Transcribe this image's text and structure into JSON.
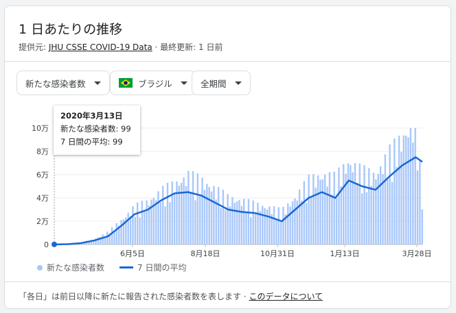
{
  "card": {
    "title": "1 日あたりの推移",
    "source_prefix": "提供元: ",
    "source_link": "JHU CSSE COVID-19 Data",
    "source_suffix": " · 最終更新: 1 日前"
  },
  "filters": {
    "metric": "新たな感染者数",
    "country": "ブラジル",
    "period": "全期間"
  },
  "tooltip": {
    "date": "2020年3月13日",
    "cases": "新たな感染者数: 99",
    "avg": "7 日間の平均: 99"
  },
  "legend": {
    "bars": "新たな感染者数",
    "line": "7 日間の平均"
  },
  "footer": {
    "text": "「各日」は前日以降に新たに報告された感染者数を表します  ·  ",
    "link": "このデータについて"
  },
  "colors": {
    "bar": "#a8c7fa",
    "line": "#1967d2"
  },
  "chart_data": {
    "type": "bar",
    "y_ticks": [
      "0",
      "2万",
      "4万",
      "6万",
      "8万",
      "10万"
    ],
    "x_ticks": [
      "6月5日",
      "8月18日",
      "10月31日",
      "1月13日",
      "3月28日"
    ],
    "ylim": [
      0,
      100000
    ],
    "series": [
      {
        "name": "新たな感染者数",
        "x": [
          "2020-03-13",
          "2020-03-27",
          "2020-04-10",
          "2020-04-24",
          "2020-05-08",
          "2020-05-22",
          "2020-06-05",
          "2020-06-19",
          "2020-07-03",
          "2020-07-17",
          "2020-07-31",
          "2020-08-14",
          "2020-08-28",
          "2020-09-11",
          "2020-09-25",
          "2020-10-09",
          "2020-10-23",
          "2020-11-06",
          "2020-11-20",
          "2020-12-04",
          "2020-12-18",
          "2021-01-01",
          "2021-01-15",
          "2021-01-29",
          "2021-02-12",
          "2021-02-26",
          "2021-03-12",
          "2021-03-26",
          "2021-04-02"
        ],
        "values": [
          99,
          500,
          1500,
          4000,
          9000,
          18000,
          28000,
          32000,
          40000,
          45000,
          52000,
          48000,
          42000,
          35000,
          33000,
          30000,
          28000,
          25000,
          35000,
          48000,
          52000,
          50000,
          62000,
          55000,
          52000,
          68000,
          80000,
          96000,
          37000
        ]
      },
      {
        "name": "7 日間の平均",
        "x": [
          "2020-03-13",
          "2020-03-27",
          "2020-04-10",
          "2020-04-24",
          "2020-05-08",
          "2020-05-22",
          "2020-06-05",
          "2020-06-19",
          "2020-07-03",
          "2020-07-17",
          "2020-07-31",
          "2020-08-14",
          "2020-08-28",
          "2020-09-11",
          "2020-09-25",
          "2020-10-09",
          "2020-10-23",
          "2020-11-06",
          "2020-11-20",
          "2020-12-04",
          "2020-12-18",
          "2021-01-01",
          "2021-01-15",
          "2021-01-29",
          "2021-02-12",
          "2021-02-26",
          "2021-03-12",
          "2021-03-26",
          "2021-04-02"
        ],
        "values": [
          99,
          300,
          1200,
          3500,
          7000,
          16000,
          26000,
          30000,
          38000,
          44000,
          45000,
          42000,
          36000,
          30000,
          28000,
          27000,
          24000,
          20000,
          30000,
          40000,
          45000,
          40000,
          55000,
          50000,
          47000,
          58000,
          68000,
          75000,
          71000
        ]
      }
    ]
  }
}
